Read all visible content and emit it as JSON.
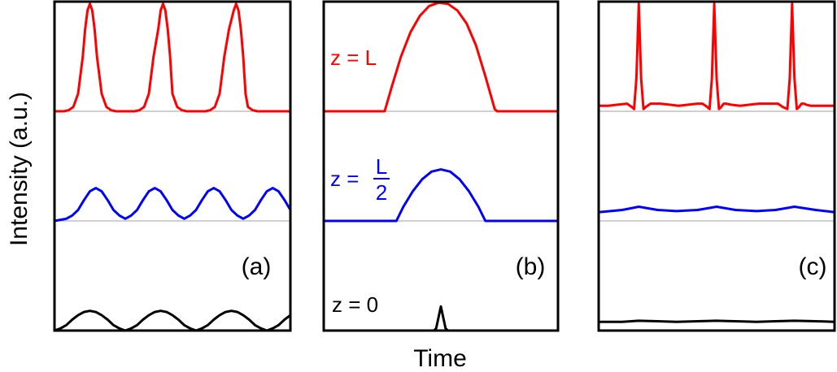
{
  "figure": {
    "ylabel": "Intensity (a.u.)",
    "xlabel": "Time"
  },
  "colors": {
    "red": "#ff0000",
    "blue": "#0000ff",
    "black": "#000000",
    "baseline": "#a0a0a0"
  },
  "chart_data": [
    {
      "type": "line",
      "panel_label": "(a)",
      "xlim": [
        0,
        1
      ],
      "ylim": [
        0,
        3
      ],
      "grid": false,
      "baselines": [
        1,
        2
      ],
      "series": [
        {
          "color": "#000000",
          "x": [
            0.0,
            0.025,
            0.05,
            0.075,
            0.1,
            0.125,
            0.15,
            0.175,
            0.2,
            0.225,
            0.25,
            0.275,
            0.3,
            0.325,
            0.35,
            0.375,
            0.4,
            0.425,
            0.45,
            0.475,
            0.5,
            0.525,
            0.55,
            0.575,
            0.6,
            0.625,
            0.65,
            0.675,
            0.7,
            0.725,
            0.75,
            0.775,
            0.8,
            0.825,
            0.85,
            0.875,
            0.9,
            0.925,
            0.95,
            0.975,
            1.0
          ],
          "y": [
            0.0,
            0.02,
            0.05,
            0.1,
            0.14,
            0.17,
            0.18,
            0.17,
            0.14,
            0.1,
            0.05,
            0.02,
            0.0,
            0.02,
            0.05,
            0.1,
            0.14,
            0.17,
            0.18,
            0.17,
            0.14,
            0.1,
            0.05,
            0.02,
            0.0,
            0.02,
            0.05,
            0.1,
            0.14,
            0.17,
            0.18,
            0.17,
            0.14,
            0.1,
            0.05,
            0.02,
            0.0,
            0.02,
            0.05,
            0.1,
            0.14
          ]
        },
        {
          "color": "#0000ff",
          "x": [
            0.0,
            0.025,
            0.05,
            0.075,
            0.1,
            0.125,
            0.15,
            0.175,
            0.2,
            0.225,
            0.25,
            0.275,
            0.3,
            0.325,
            0.35,
            0.375,
            0.4,
            0.425,
            0.45,
            0.475,
            0.5,
            0.525,
            0.55,
            0.575,
            0.6,
            0.625,
            0.65,
            0.675,
            0.7,
            0.725,
            0.75,
            0.775,
            0.8,
            0.825,
            0.85,
            0.875,
            0.9,
            0.925,
            0.95,
            0.975,
            1.0
          ],
          "y": [
            1.0,
            1.01,
            1.02,
            1.05,
            1.1,
            1.19,
            1.27,
            1.3,
            1.27,
            1.19,
            1.1,
            1.05,
            1.02,
            1.05,
            1.1,
            1.19,
            1.27,
            1.3,
            1.27,
            1.19,
            1.1,
            1.05,
            1.02,
            1.05,
            1.1,
            1.19,
            1.27,
            1.3,
            1.27,
            1.19,
            1.1,
            1.05,
            1.02,
            1.05,
            1.1,
            1.19,
            1.27,
            1.3,
            1.27,
            1.19,
            1.1
          ]
        },
        {
          "color": "#ff0000",
          "x": [
            0.0,
            0.02,
            0.04,
            0.06,
            0.08,
            0.1,
            0.12,
            0.13,
            0.14,
            0.15,
            0.16,
            0.17,
            0.18,
            0.2,
            0.22,
            0.24,
            0.26,
            0.28,
            0.3,
            0.32,
            0.34,
            0.36,
            0.38,
            0.4,
            0.42,
            0.44,
            0.45,
            0.46,
            0.47,
            0.48,
            0.49,
            0.5,
            0.52,
            0.54,
            0.56,
            0.58,
            0.6,
            0.62,
            0.64,
            0.66,
            0.68,
            0.7,
            0.72,
            0.74,
            0.76,
            0.77,
            0.78,
            0.79,
            0.8,
            0.81,
            0.82,
            0.84,
            0.86,
            0.88,
            0.9,
            0.92,
            0.94,
            0.96,
            0.98,
            1.0
          ],
          "y": [
            2.0,
            2.0,
            2.0,
            2.01,
            2.04,
            2.16,
            2.5,
            2.75,
            2.92,
            2.98,
            2.92,
            2.75,
            2.5,
            2.16,
            2.04,
            2.01,
            2.0,
            2.0,
            2.0,
            2.0,
            2.0,
            2.01,
            2.04,
            2.16,
            2.5,
            2.75,
            2.92,
            2.98,
            2.92,
            2.75,
            2.5,
            2.16,
            2.04,
            2.01,
            2.0,
            2.0,
            2.0,
            2.0,
            2.0,
            2.01,
            2.04,
            2.16,
            2.5,
            2.75,
            2.92,
            2.98,
            2.92,
            2.75,
            2.5,
            2.16,
            2.04,
            2.01,
            2.0,
            2.0,
            2.0,
            2.0,
            2.0,
            2.0,
            2.0,
            2.0
          ]
        }
      ]
    },
    {
      "type": "line",
      "panel_label": "(b)",
      "xlim": [
        0,
        1
      ],
      "ylim": [
        0,
        3
      ],
      "grid": false,
      "baselines": [
        1,
        2
      ],
      "annotations": [
        {
          "text": "z = 0",
          "color": "#000000"
        },
        {
          "text": "z = L",
          "color": "#ff0000"
        },
        {
          "prefix": "z =",
          "numerator": "L",
          "denominator": "2",
          "color": "#0000ff"
        }
      ],
      "series": [
        {
          "color": "#000000",
          "x": [
            0.0,
            0.47,
            0.48,
            0.49,
            0.5,
            0.51,
            0.52,
            0.53,
            1.0
          ],
          "y": [
            0.0,
            0.0,
            0.02,
            0.12,
            0.22,
            0.12,
            0.02,
            0.0,
            0.0
          ]
        },
        {
          "color": "#0000ff",
          "x": [
            0.0,
            0.31,
            0.34,
            0.38,
            0.42,
            0.46,
            0.5,
            0.54,
            0.58,
            0.62,
            0.66,
            0.69,
            1.0
          ],
          "y": [
            1.0,
            1.0,
            1.13,
            1.27,
            1.38,
            1.45,
            1.47,
            1.45,
            1.38,
            1.27,
            1.13,
            1.0,
            1.0
          ]
        },
        {
          "color": "#ff0000",
          "x": [
            0.0,
            0.26,
            0.29,
            0.33,
            0.37,
            0.41,
            0.45,
            0.49,
            0.53,
            0.57,
            0.61,
            0.65,
            0.69,
            0.73,
            0.74,
            1.0
          ],
          "y": [
            2.0,
            2.0,
            2.22,
            2.5,
            2.72,
            2.87,
            2.96,
            2.99,
            2.98,
            2.92,
            2.8,
            2.6,
            2.32,
            2.02,
            2.0,
            2.0
          ]
        }
      ]
    },
    {
      "type": "line",
      "panel_label": "(c)",
      "xlim": [
        0,
        1
      ],
      "ylim": [
        0,
        3
      ],
      "grid": false,
      "baselines": [
        1,
        2
      ],
      "series": [
        {
          "color": "#000000",
          "x": [
            0.0,
            0.1,
            0.17,
            0.25,
            0.33,
            0.42,
            0.5,
            0.58,
            0.67,
            0.75,
            0.83,
            0.92,
            1.0
          ],
          "y": [
            0.08,
            0.08,
            0.09,
            0.085,
            0.08,
            0.085,
            0.09,
            0.085,
            0.08,
            0.085,
            0.09,
            0.085,
            0.08
          ]
        },
        {
          "color": "#0000ff",
          "x": [
            0.0,
            0.05,
            0.1,
            0.17,
            0.25,
            0.33,
            0.42,
            0.5,
            0.58,
            0.67,
            0.75,
            0.83,
            0.92,
            1.0
          ],
          "y": [
            1.08,
            1.09,
            1.1,
            1.13,
            1.1,
            1.09,
            1.1,
            1.13,
            1.1,
            1.09,
            1.1,
            1.13,
            1.1,
            1.08
          ]
        },
        {
          "color": "#ff0000",
          "x": [
            0.0,
            0.04,
            0.08,
            0.12,
            0.14,
            0.15,
            0.16,
            0.17,
            0.18,
            0.19,
            0.2,
            0.22,
            0.26,
            0.3,
            0.34,
            0.38,
            0.42,
            0.44,
            0.46,
            0.47,
            0.48,
            0.49,
            0.5,
            0.51,
            0.52,
            0.53,
            0.54,
            0.56,
            0.6,
            0.64,
            0.68,
            0.72,
            0.76,
            0.78,
            0.8,
            0.81,
            0.82,
            0.83,
            0.84,
            0.85,
            0.86,
            0.87,
            0.88,
            0.9,
            0.94,
            0.98,
            1.0
          ],
          "y": [
            2.05,
            2.05,
            2.06,
            2.07,
            2.04,
            2.02,
            2.3,
            2.98,
            2.3,
            2.02,
            2.04,
            2.07,
            2.07,
            2.06,
            2.05,
            2.06,
            2.07,
            2.07,
            2.04,
            2.02,
            2.3,
            2.98,
            2.3,
            2.02,
            2.04,
            2.07,
            2.07,
            2.06,
            2.05,
            2.06,
            2.07,
            2.07,
            2.07,
            2.04,
            2.02,
            2.3,
            2.98,
            2.3,
            2.02,
            2.04,
            2.07,
            2.07,
            2.06,
            2.05,
            2.05,
            2.05,
            2.05
          ]
        }
      ]
    }
  ]
}
